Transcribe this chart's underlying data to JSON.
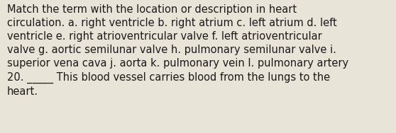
{
  "background_color": "#e8e4d8",
  "line1": "Match the term with the location or description in heart",
  "line2": "circulation. a. right ventricle b. right atrium c. left atrium d. left",
  "line3": "ventricle e. right atrioventricular valve f. left atrioventricular",
  "line4": "valve g. aortic semilunar valve h. pulmonary semilunar valve i.",
  "line5": "superior vena cava j. aorta k. pulmonary vein l. pulmonary artery",
  "line6": "20. _____ This blood vessel carries blood from the lungs to the",
  "line7": "heart.",
  "font_size": 10.5,
  "text_color": "#1a1a1a",
  "fig_width": 5.58,
  "fig_height": 1.88
}
